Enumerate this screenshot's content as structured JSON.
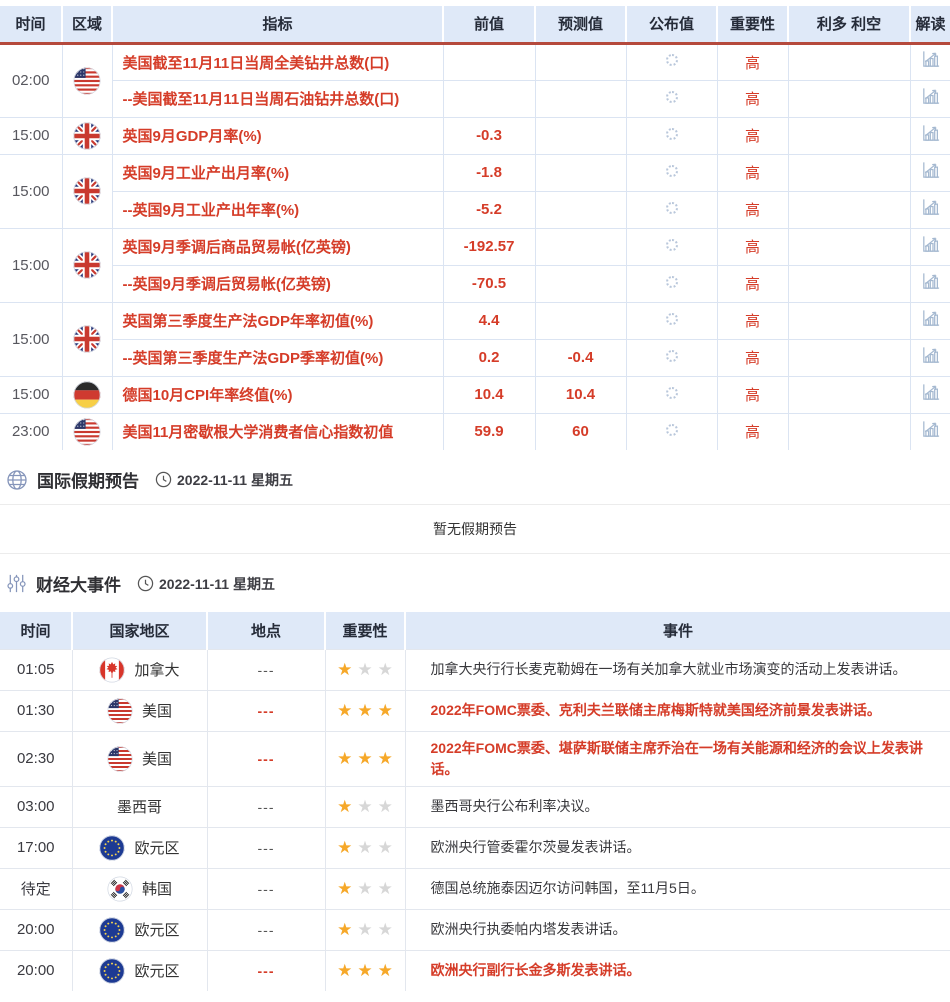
{
  "colors": {
    "header_bg": "#dfe9f8",
    "header_underline": "#b5493c",
    "red_text": "#d53c28",
    "gold_star": "#f6a829",
    "inactive_star": "#d7d7d7",
    "section_icon": "#8595ba",
    "chart_icon": "#a4b8d0"
  },
  "calendar": {
    "headers": {
      "time": "时间",
      "region": "区域",
      "indicator": "指标",
      "previous": "前值",
      "forecast": "预测值",
      "published": "公布值",
      "importance": "重要性",
      "bias": "利多 利空",
      "interpret": "解读"
    },
    "groups": [
      {
        "time": "02:00",
        "flag": "us",
        "rows": [
          {
            "indicator": "美国截至11月11日当周全美钻井总数(口)",
            "previous": "",
            "forecast": "",
            "importance": "高"
          },
          {
            "indicator": "--美国截至11月11日当周石油钻井总数(口)",
            "previous": "",
            "forecast": "",
            "importance": "高"
          }
        ]
      },
      {
        "time": "15:00",
        "flag": "gb",
        "rows": [
          {
            "indicator": "英国9月GDP月率(%)",
            "previous": "-0.3",
            "forecast": "",
            "importance": "高"
          }
        ]
      },
      {
        "time": "15:00",
        "flag": "gb",
        "rows": [
          {
            "indicator": "英国9月工业产出月率(%)",
            "previous": "-1.8",
            "forecast": "",
            "importance": "高"
          },
          {
            "indicator": "--英国9月工业产出年率(%)",
            "previous": "-5.2",
            "forecast": "",
            "importance": "高"
          }
        ]
      },
      {
        "time": "15:00",
        "flag": "gb",
        "rows": [
          {
            "indicator": "英国9月季调后商品贸易帐(亿英镑)",
            "previous": "-192.57",
            "forecast": "",
            "importance": "高"
          },
          {
            "indicator": "--英国9月季调后贸易帐(亿英镑)",
            "previous": "-70.5",
            "forecast": "",
            "importance": "高"
          }
        ]
      },
      {
        "time": "15:00",
        "flag": "gb",
        "rows": [
          {
            "indicator": "英国第三季度生产法GDP年率初值(%)",
            "previous": "4.4",
            "forecast": "",
            "importance": "高"
          },
          {
            "indicator": "--英国第三季度生产法GDP季率初值(%)",
            "previous": "0.2",
            "forecast": "-0.4",
            "importance": "高"
          }
        ]
      },
      {
        "time": "15:00",
        "flag": "de",
        "rows": [
          {
            "indicator": "德国10月CPI年率终值(%)",
            "previous": "10.4",
            "forecast": "10.4",
            "importance": "高"
          }
        ]
      },
      {
        "time": "23:00",
        "flag": "us",
        "rows": [
          {
            "indicator": "美国11月密歇根大学消费者信心指数初值",
            "previous": "59.9",
            "forecast": "60",
            "importance": "高"
          }
        ]
      }
    ]
  },
  "holiday": {
    "title": "国际假期预告",
    "date": "2022-11-11 星期五",
    "empty_text": "暂无假期预告"
  },
  "events": {
    "title": "财经大事件",
    "date": "2022-11-11 星期五",
    "headers": {
      "time": "时间",
      "country": "国家地区",
      "location": "地点",
      "importance": "重要性",
      "event": "事件"
    },
    "rows": [
      {
        "time": "01:05",
        "flag": "ca",
        "country": "加拿大",
        "location": "---",
        "stars": 1,
        "highlight": false,
        "event": "加拿大央行行长麦克勒姆在一场有关加拿大就业市场演变的活动上发表讲话。"
      },
      {
        "time": "01:30",
        "flag": "us",
        "country": "美国",
        "location": "---",
        "stars": 3,
        "highlight": true,
        "event": "2022年FOMC票委、克利夫兰联储主席梅斯特就美国经济前景发表讲话。"
      },
      {
        "time": "02:30",
        "flag": "us",
        "country": "美国",
        "location": "---",
        "stars": 3,
        "highlight": true,
        "event": "2022年FOMC票委、堪萨斯联储主席乔治在一场有关能源和经济的会议上发表讲话。"
      },
      {
        "time": "03:00",
        "flag": "",
        "country": "墨西哥",
        "location": "---",
        "stars": 1,
        "highlight": false,
        "event": "墨西哥央行公布利率决议。"
      },
      {
        "time": "17:00",
        "flag": "eu",
        "country": "欧元区",
        "location": "---",
        "stars": 1,
        "highlight": false,
        "event": "欧洲央行管委霍尔茨曼发表讲话。"
      },
      {
        "time": "待定",
        "flag": "kr",
        "country": "韩国",
        "location": "---",
        "stars": 1,
        "highlight": false,
        "event": "德国总统施泰因迈尔访问韩国，至11月5日。"
      },
      {
        "time": "20:00",
        "flag": "eu",
        "country": "欧元区",
        "location": "---",
        "stars": 1,
        "highlight": false,
        "event": "欧洲央行执委帕内塔发表讲话。"
      },
      {
        "time": "20:00",
        "flag": "eu",
        "country": "欧元区",
        "location": "---",
        "stars": 3,
        "highlight": true,
        "event": "欧洲央行副行长金多斯发表讲话。"
      }
    ]
  }
}
